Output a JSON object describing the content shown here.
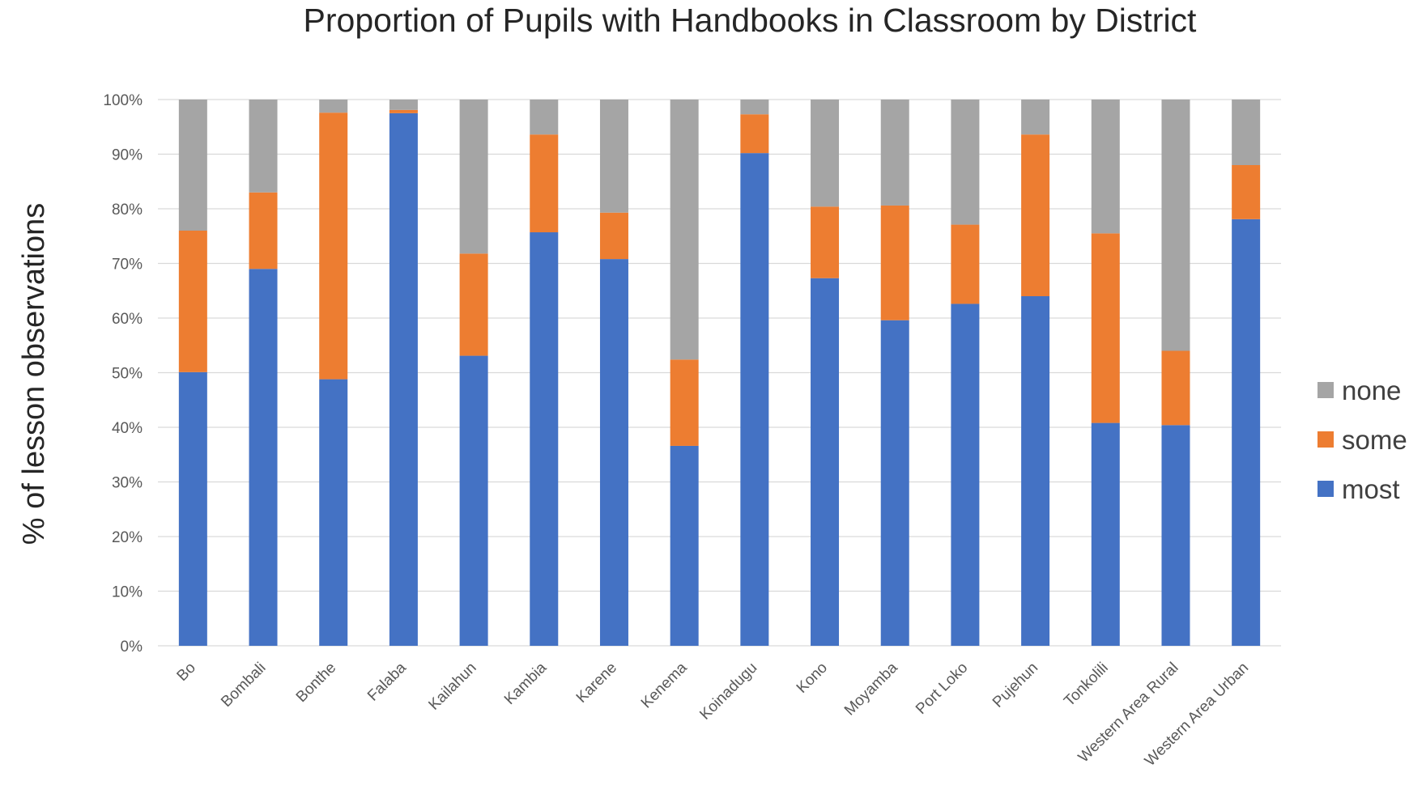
{
  "chart_data": {
    "type": "bar",
    "stacked": true,
    "title": "Proportion of Pupils with Handbooks in Classroom by District",
    "xlabel": "",
    "ylabel": "% of lesson observations",
    "ylim": [
      0,
      100
    ],
    "y_ticks": [
      "0%",
      "10%",
      "20%",
      "30%",
      "40%",
      "50%",
      "60%",
      "70%",
      "80%",
      "90%",
      "100%"
    ],
    "categories": [
      "Bo",
      "Bombali",
      "Bonthe",
      "Falaba",
      "Kailahun",
      "Kambia",
      "Karene",
      "Kenema",
      "Koinadugu",
      "Kono",
      "Moyamba",
      "Port Loko",
      "Pujehun",
      "Tonkolili",
      "Western Area Rural",
      "Western Area Urban"
    ],
    "series": [
      {
        "name": "most",
        "color": "#4472c4",
        "values": [
          50.1,
          69,
          48.8,
          97.5,
          53.1,
          75.7,
          70.8,
          36.6,
          90.2,
          67.3,
          59.6,
          62.6,
          64,
          40.8,
          40.4,
          78.1
        ]
      },
      {
        "name": "some",
        "color": "#ed7d31",
        "values": [
          25.9,
          14,
          48.8,
          0.6,
          18.7,
          17.9,
          8.5,
          15.8,
          7.1,
          13.1,
          21,
          14.5,
          29.6,
          34.7,
          13.6,
          9.9
        ]
      },
      {
        "name": "none",
        "color": "#a5a5a5",
        "values": [
          24,
          17,
          2.4,
          1.9,
          28.2,
          6.4,
          20.7,
          47.6,
          2.7,
          19.6,
          19.4,
          22.9,
          6.4,
          24.5,
          46,
          12
        ]
      }
    ],
    "legend_order": [
      "none",
      "some",
      "most"
    ],
    "legend_position": "right",
    "grid": true
  }
}
